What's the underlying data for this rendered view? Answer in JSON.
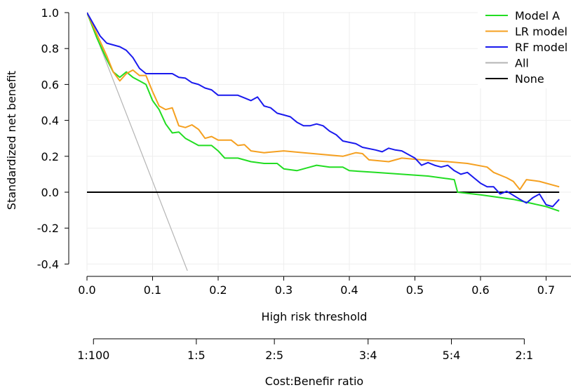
{
  "chart_data": {
    "type": "line",
    "xlabel": "High risk threshold",
    "ylabel": "Standardized net benefit",
    "xlim": [
      0,
      0.72
    ],
    "ylim": [
      -0.45,
      1.0
    ],
    "x_ticks": [
      "0.0",
      "0.1",
      "0.2",
      "0.3",
      "0.4",
      "0.5",
      "0.6",
      "0.7"
    ],
    "y_ticks": [
      "1.0",
      "0.8",
      "0.6",
      "0.4",
      "0.2",
      "0.0",
      "-0.2",
      "-0.4"
    ],
    "secondary_axis": {
      "label": "Cost:Benefir ratio",
      "ticks": [
        {
          "label": "1:100",
          "threshold": 0.0099
        },
        {
          "label": "1:5",
          "threshold": 0.1667
        },
        {
          "label": "2:5",
          "threshold": 0.2857
        },
        {
          "label": "3:4",
          "threshold": 0.4286
        },
        {
          "label": "5:4",
          "threshold": 0.5556
        },
        {
          "label": "2:1",
          "threshold": 0.6667
        }
      ]
    },
    "legend_position": "top-right",
    "series": [
      {
        "name": "Model A",
        "color": "#22dd22",
        "points": [
          [
            0,
            1.0
          ],
          [
            0.015,
            0.86
          ],
          [
            0.03,
            0.74
          ],
          [
            0.04,
            0.67
          ],
          [
            0.05,
            0.64
          ],
          [
            0.06,
            0.67
          ],
          [
            0.07,
            0.64
          ],
          [
            0.08,
            0.62
          ],
          [
            0.09,
            0.6
          ],
          [
            0.1,
            0.51
          ],
          [
            0.11,
            0.46
          ],
          [
            0.12,
            0.38
          ],
          [
            0.13,
            0.33
          ],
          [
            0.14,
            0.335
          ],
          [
            0.15,
            0.3
          ],
          [
            0.16,
            0.28
          ],
          [
            0.17,
            0.26
          ],
          [
            0.19,
            0.26
          ],
          [
            0.2,
            0.23
          ],
          [
            0.21,
            0.19
          ],
          [
            0.23,
            0.19
          ],
          [
            0.25,
            0.17
          ],
          [
            0.27,
            0.16
          ],
          [
            0.29,
            0.16
          ],
          [
            0.3,
            0.13
          ],
          [
            0.32,
            0.12
          ],
          [
            0.34,
            0.14
          ],
          [
            0.35,
            0.15
          ],
          [
            0.37,
            0.14
          ],
          [
            0.39,
            0.14
          ],
          [
            0.4,
            0.12
          ],
          [
            0.44,
            0.11
          ],
          [
            0.48,
            0.1
          ],
          [
            0.52,
            0.09
          ],
          [
            0.55,
            0.075
          ],
          [
            0.56,
            0.07
          ],
          [
            0.565,
            0.0
          ],
          [
            0.6,
            -0.015
          ],
          [
            0.65,
            -0.04
          ],
          [
            0.7,
            -0.08
          ],
          [
            0.72,
            -0.105
          ]
        ]
      },
      {
        "name": "LR model",
        "color": "#f5a020",
        "points": [
          [
            0,
            1.0
          ],
          [
            0.015,
            0.88
          ],
          [
            0.03,
            0.76
          ],
          [
            0.04,
            0.67
          ],
          [
            0.05,
            0.62
          ],
          [
            0.06,
            0.66
          ],
          [
            0.07,
            0.68
          ],
          [
            0.08,
            0.65
          ],
          [
            0.09,
            0.65
          ],
          [
            0.1,
            0.56
          ],
          [
            0.11,
            0.48
          ],
          [
            0.12,
            0.46
          ],
          [
            0.13,
            0.47
          ],
          [
            0.14,
            0.37
          ],
          [
            0.15,
            0.36
          ],
          [
            0.16,
            0.375
          ],
          [
            0.17,
            0.35
          ],
          [
            0.18,
            0.3
          ],
          [
            0.19,
            0.31
          ],
          [
            0.2,
            0.29
          ],
          [
            0.22,
            0.29
          ],
          [
            0.23,
            0.26
          ],
          [
            0.24,
            0.265
          ],
          [
            0.25,
            0.23
          ],
          [
            0.27,
            0.22
          ],
          [
            0.3,
            0.23
          ],
          [
            0.33,
            0.22
          ],
          [
            0.36,
            0.21
          ],
          [
            0.39,
            0.2
          ],
          [
            0.41,
            0.22
          ],
          [
            0.42,
            0.215
          ],
          [
            0.43,
            0.18
          ],
          [
            0.46,
            0.17
          ],
          [
            0.48,
            0.19
          ],
          [
            0.51,
            0.18
          ],
          [
            0.55,
            0.17
          ],
          [
            0.58,
            0.16
          ],
          [
            0.61,
            0.14
          ],
          [
            0.62,
            0.11
          ],
          [
            0.64,
            0.08
          ],
          [
            0.65,
            0.06
          ],
          [
            0.66,
            0.015
          ],
          [
            0.67,
            0.07
          ],
          [
            0.69,
            0.06
          ],
          [
            0.72,
            0.03
          ]
        ]
      },
      {
        "name": "RF model",
        "color": "#1a1aee",
        "points": [
          [
            0,
            1.0
          ],
          [
            0.02,
            0.87
          ],
          [
            0.03,
            0.83
          ],
          [
            0.05,
            0.81
          ],
          [
            0.06,
            0.79
          ],
          [
            0.07,
            0.75
          ],
          [
            0.08,
            0.69
          ],
          [
            0.09,
            0.66
          ],
          [
            0.13,
            0.66
          ],
          [
            0.14,
            0.64
          ],
          [
            0.15,
            0.635
          ],
          [
            0.16,
            0.61
          ],
          [
            0.17,
            0.6
          ],
          [
            0.18,
            0.58
          ],
          [
            0.19,
            0.57
          ],
          [
            0.2,
            0.54
          ],
          [
            0.23,
            0.54
          ],
          [
            0.24,
            0.525
          ],
          [
            0.25,
            0.51
          ],
          [
            0.26,
            0.53
          ],
          [
            0.27,
            0.48
          ],
          [
            0.28,
            0.47
          ],
          [
            0.29,
            0.44
          ],
          [
            0.3,
            0.43
          ],
          [
            0.31,
            0.42
          ],
          [
            0.32,
            0.39
          ],
          [
            0.33,
            0.37
          ],
          [
            0.34,
            0.37
          ],
          [
            0.35,
            0.38
          ],
          [
            0.36,
            0.37
          ],
          [
            0.37,
            0.34
          ],
          [
            0.38,
            0.32
          ],
          [
            0.39,
            0.285
          ],
          [
            0.41,
            0.27
          ],
          [
            0.42,
            0.25
          ],
          [
            0.44,
            0.235
          ],
          [
            0.45,
            0.225
          ],
          [
            0.46,
            0.245
          ],
          [
            0.47,
            0.235
          ],
          [
            0.48,
            0.23
          ],
          [
            0.49,
            0.21
          ],
          [
            0.5,
            0.19
          ],
          [
            0.51,
            0.15
          ],
          [
            0.52,
            0.165
          ],
          [
            0.53,
            0.15
          ],
          [
            0.54,
            0.14
          ],
          [
            0.55,
            0.15
          ],
          [
            0.56,
            0.12
          ],
          [
            0.57,
            0.1
          ],
          [
            0.58,
            0.11
          ],
          [
            0.59,
            0.08
          ],
          [
            0.6,
            0.05
          ],
          [
            0.61,
            0.03
          ],
          [
            0.62,
            0.03
          ],
          [
            0.63,
            -0.01
          ],
          [
            0.64,
            0.005
          ],
          [
            0.66,
            -0.04
          ],
          [
            0.67,
            -0.06
          ],
          [
            0.68,
            -0.03
          ],
          [
            0.69,
            -0.01
          ],
          [
            0.7,
            -0.07
          ],
          [
            0.71,
            -0.08
          ],
          [
            0.72,
            -0.04
          ]
        ]
      },
      {
        "name": "All",
        "color": "#b4b4b4",
        "points": [
          [
            0,
            1.0
          ],
          [
            0.155,
            -0.455
          ]
        ]
      },
      {
        "name": "None",
        "color": "#000000",
        "points": [
          [
            0,
            0.0
          ],
          [
            0.72,
            0.0
          ]
        ]
      }
    ]
  }
}
